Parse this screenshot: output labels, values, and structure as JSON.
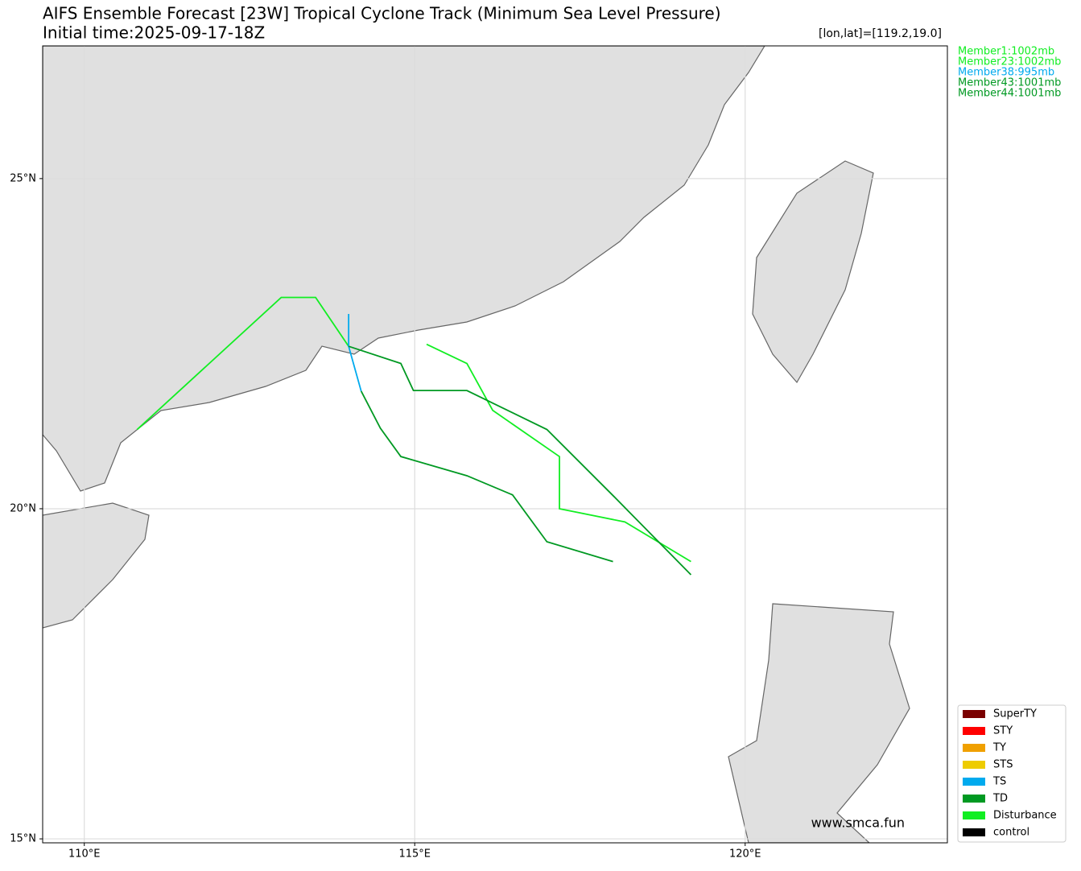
{
  "chart_data": {
    "type": "track",
    "title": "AIFS Ensemble Forecast [23W] Tropical Cyclone Track (Minimum Sea Level Pressure)",
    "subtitle": "Initial time:2025-09-17-18Z",
    "annotation": "[lon,lat]=[119.2,19.0]",
    "watermark": "www.smca.fun",
    "xlim": [
      109.37,
      123.06
    ],
    "ylim": [
      14.94,
      27.01
    ],
    "xticks": [
      {
        "value": 110,
        "label": "110°E"
      },
      {
        "value": 115,
        "label": "115°E"
      },
      {
        "value": 120,
        "label": "120°E"
      }
    ],
    "yticks": [
      {
        "value": 15,
        "label": "15°N"
      },
      {
        "value": 20,
        "label": "20°N"
      },
      {
        "value": 25,
        "label": "25°N"
      }
    ],
    "grid": true,
    "series": [
      {
        "name": "Member1:1002mb",
        "color": "#11ee22",
        "x": [
          110.8,
          112.98,
          113.5,
          114.0
        ],
        "values": [
          21.2,
          23.2,
          23.2,
          22.46
        ]
      },
      {
        "name": "Member23:1002mb",
        "color": "#11ee22",
        "x": [
          115.18,
          115.79,
          116.18,
          117.19,
          117.19,
          118.18,
          119.18
        ],
        "values": [
          22.49,
          22.2,
          21.49,
          20.79,
          20.0,
          19.8,
          19.2
        ]
      },
      {
        "name": "Member38:995mb",
        "color": "#00aaee",
        "x": [
          114.0,
          114.0,
          114.19
        ],
        "values": [
          22.95,
          22.46,
          21.78
        ]
      },
      {
        "name": "Member43:1001mb",
        "color": "#009922",
        "x": [
          114.19,
          114.48,
          114.79,
          115.79,
          116.48,
          117.0,
          118.0
        ],
        "values": [
          21.78,
          21.22,
          20.79,
          20.5,
          20.21,
          19.5,
          19.2
        ]
      },
      {
        "name": "Member44:1001mb",
        "color": "#009922",
        "x": [
          114.0,
          114.79,
          114.98,
          115.79,
          117.0,
          118.0,
          119.18
        ],
        "values": [
          22.46,
          22.2,
          21.79,
          21.79,
          21.2,
          20.2,
          19.0
        ]
      }
    ],
    "legend": [
      {
        "name": "SuperTY",
        "color": "#7a0000"
      },
      {
        "name": "STY",
        "color": "#ff0000"
      },
      {
        "name": "TY",
        "color": "#f0a000"
      },
      {
        "name": "STS",
        "color": "#eecc00"
      },
      {
        "name": "TS",
        "color": "#00aaee"
      },
      {
        "name": "TD",
        "color": "#009922"
      },
      {
        "name": "Disturbance",
        "color": "#11ee22"
      },
      {
        "name": "control",
        "color": "#000000"
      }
    ]
  }
}
